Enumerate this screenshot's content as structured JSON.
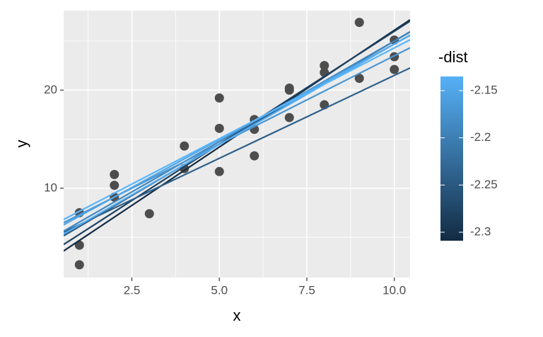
{
  "chart_data": {
    "type": "scatter",
    "x_label": "x",
    "y_label": "y",
    "x": [
      1,
      1,
      1,
      2,
      2,
      2,
      3,
      4,
      4,
      5,
      5,
      5,
      6,
      6,
      6,
      7,
      7,
      7,
      8,
      8,
      8,
      9,
      9,
      10,
      10,
      10
    ],
    "y": [
      7.5,
      4.2,
      2.2,
      11.4,
      10.3,
      9.1,
      7.4,
      14.3,
      12.0,
      19.2,
      16.1,
      11.7,
      17.0,
      16.0,
      13.3,
      20.2,
      20.0,
      17.2,
      22.5,
      21.8,
      18.5,
      26.9,
      21.2,
      25.1,
      23.4,
      22.1
    ],
    "point_color": "#4d4d4d",
    "lines": [
      {
        "intercept": 2.3,
        "slope": 2.38,
        "value": -2.31
      },
      {
        "intercept": 3.0,
        "slope": 2.3,
        "value": -2.28
      },
      {
        "intercept": 4.0,
        "slope": 2.1,
        "value": -2.25
      },
      {
        "intercept": 4.6,
        "slope": 1.69,
        "value": -2.24
      },
      {
        "intercept": 4.5,
        "slope": 2.05,
        "value": -2.19
      },
      {
        "intercept": 5.5,
        "slope": 1.8,
        "value": -2.17
      },
      {
        "intercept": 5.2,
        "slope": 1.95,
        "value": -2.15
      },
      {
        "intercept": 4.2,
        "slope": 2.05,
        "value": -2.14
      },
      {
        "intercept": 5.8,
        "slope": 1.85,
        "value": -2.13
      }
    ],
    "xlim": [
      0.55,
      10.45
    ],
    "ylim": [
      0.9,
      28.1
    ],
    "xticks": [
      {
        "value": 2.5,
        "label": "2.5"
      },
      {
        "value": 5,
        "label": "5.0"
      },
      {
        "value": 7.5,
        "label": "7.5"
      },
      {
        "value": 10,
        "label": "10.0"
      }
    ],
    "yticks": [
      10,
      20
    ],
    "xminorticks": [
      1.25,
      3.75,
      6.25,
      8.75
    ],
    "yminorticks": [
      5,
      15,
      25
    ],
    "grid": true,
    "legend": {
      "title": "-dist",
      "position": "right",
      "limits": [
        -2.309,
        -2.135
      ],
      "low_color": "#132b43",
      "high_color": "#56b1f7",
      "ticks": [
        -2.15,
        -2.2,
        {
          "value": -2.25,
          "label": "-2.25"
        },
        -2.3
      ]
    }
  }
}
